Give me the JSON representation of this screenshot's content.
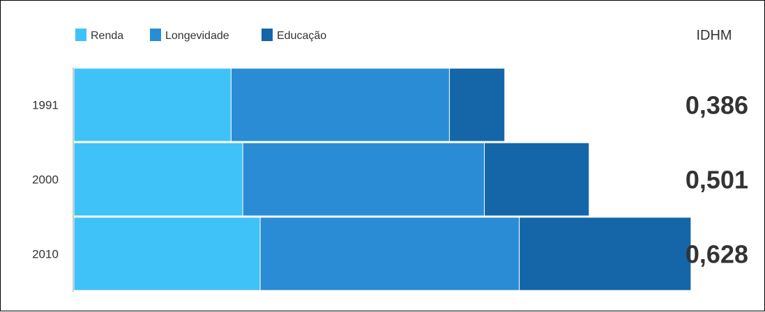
{
  "chart_data": {
    "type": "bar",
    "orientation": "horizontal",
    "stacked": true,
    "categories": [
      "1991",
      "2000",
      "2010"
    ],
    "series": [
      {
        "name": "Renda",
        "color": "#3FC2F8",
        "values": [
          0.54,
          0.58,
          0.64
        ]
      },
      {
        "name": "Longevidade",
        "color": "#2A8CD4",
        "values": [
          0.75,
          0.83,
          0.89
        ]
      },
      {
        "name": "Educação",
        "color": "#1466A8",
        "values": [
          0.19,
          0.36,
          0.59
        ]
      }
    ],
    "idhm_header": "IDHM",
    "idhm_values": [
      "0,386",
      "0,501",
      "0,628"
    ],
    "xlim": [
      0,
      2.24
    ],
    "grid": false,
    "legend_position": "top-left"
  }
}
